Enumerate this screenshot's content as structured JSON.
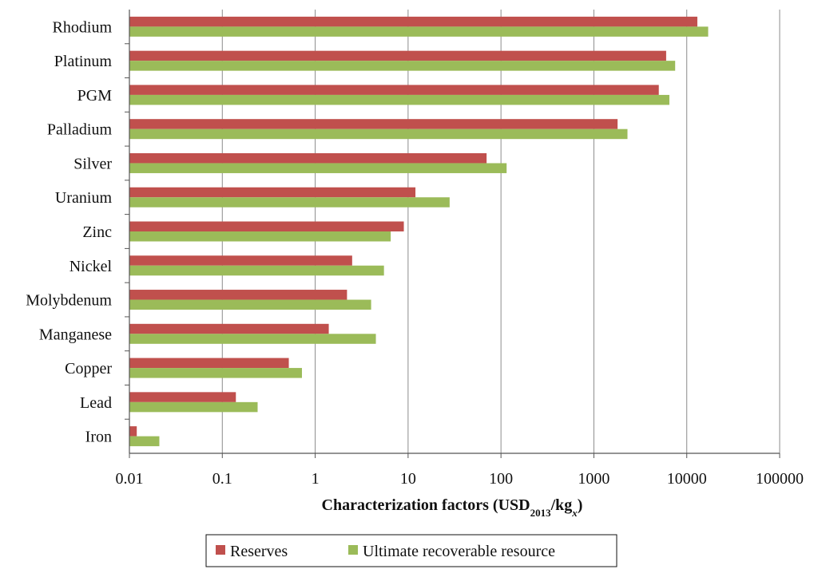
{
  "chart_data": {
    "type": "bar",
    "orientation": "horizontal",
    "x_scale": "log",
    "xlim": [
      0.01,
      100000
    ],
    "xticks": [
      "0.01",
      "0.1",
      "1",
      "10",
      "100",
      "1000",
      "10000",
      "100000"
    ],
    "xlabel": {
      "main": "Characterization factors (USD",
      "sub1": "2013",
      "mid": "/kg",
      "sub2": "x",
      "end": ")"
    },
    "categories": [
      "Rhodium",
      "Platinum",
      "PGM",
      "Palladium",
      "Silver",
      "Uranium",
      "Zinc",
      "Nickel",
      "Molybdenum",
      "Manganese",
      "Copper",
      "Lead",
      "Iron"
    ],
    "series": [
      {
        "name": "Reserves",
        "color": "#c0504d",
        "values": [
          13000,
          6000,
          5000,
          1800,
          70,
          12,
          9,
          2.5,
          2.2,
          1.4,
          0.52,
          0.14,
          0.012
        ]
      },
      {
        "name": "Ultimate recoverable resource",
        "color": "#9bbb59",
        "values": [
          17000,
          7500,
          6500,
          2300,
          115,
          28,
          6.5,
          5.5,
          4.0,
          4.5,
          0.72,
          0.24,
          0.021
        ]
      }
    ],
    "grid": "vertical major",
    "legend_position": "bottom"
  }
}
